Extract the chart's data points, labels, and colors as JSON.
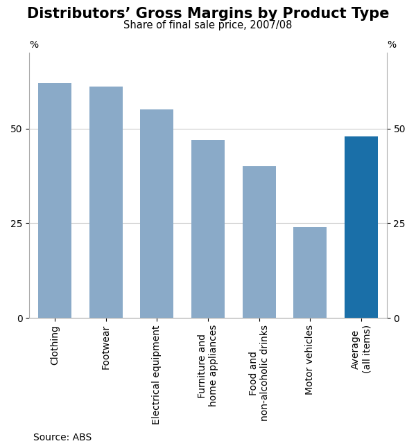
{
  "title": "Distributors’ Gross Margins by Product Type",
  "subtitle": "Share of final sale price, 2007/08",
  "source": "Source: ABS",
  "categories": [
    "Clothing",
    "Footwear",
    "Electrical equipment",
    "Furniture and\nhome appliances",
    "Food and\nnon-alcoholic drinks",
    "Motor vehicles",
    "Average\n(all items)"
  ],
  "values": [
    62.0,
    61.0,
    55.0,
    47.0,
    40.0,
    24.0,
    48.0
  ],
  "bar_colors": [
    "#8aaac8",
    "#8aaac8",
    "#8aaac8",
    "#8aaac8",
    "#8aaac8",
    "#8aaac8",
    "#1a6fa8"
  ],
  "ylim": [
    0,
    70
  ],
  "yticks": [
    0,
    25,
    50
  ],
  "ylabel_left": "%",
  "ylabel_right": "%",
  "background_color": "#ffffff",
  "title_fontsize": 15,
  "subtitle_fontsize": 10.5,
  "tick_fontsize": 10,
  "source_fontsize": 10,
  "grid_color": "#cccccc",
  "spine_color": "#aaaaaa"
}
